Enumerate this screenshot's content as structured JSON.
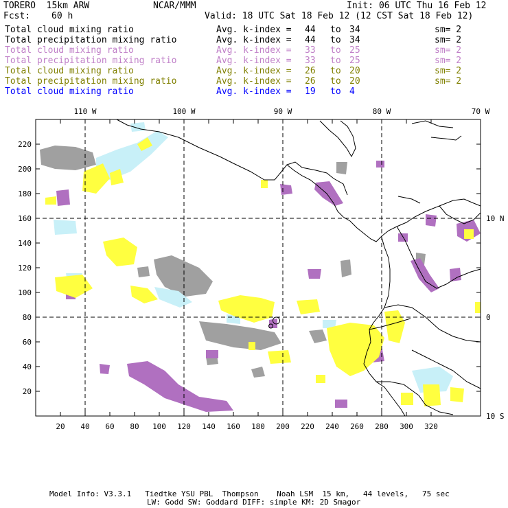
{
  "header": {
    "model": "TORERO  15km ARW",
    "org": "NCAR/MMM",
    "init": "Init: 06 UTC Thu 16 Feb 12",
    "fcst_label": "Fcst:",
    "fcst_value": "60 h",
    "valid": "Valid: 18 UTC Sat 18 Feb 12 (12 CST Sat 18 Feb 12)"
  },
  "legend": [
    {
      "field": "Total cloud mixing ratio",
      "kindex": "Avg. k-index =",
      "from": "44",
      "to_word": "to",
      "to": "34",
      "sm": "sm= 2",
      "color": "#000000"
    },
    {
      "field": "Total precipitation mixing ratio",
      "kindex": "Avg. k-index =",
      "from": "44",
      "to_word": "to",
      "to": "34",
      "sm": "sm= 2",
      "color": "#000000"
    },
    {
      "field": "Total cloud mixing ratio",
      "kindex": "Avg. k-index =",
      "from": "33",
      "to_word": "to",
      "to": "25",
      "sm": "sm= 2",
      "color": "#c080c8"
    },
    {
      "field": "Total precipitation mixing ratio",
      "kindex": "Avg. k-index =",
      "from": "33",
      "to_word": "to",
      "to": "25",
      "sm": "sm= 2",
      "color": "#c080c8"
    },
    {
      "field": "Total cloud mixing ratio",
      "kindex": "Avg. k-index =",
      "from": "26",
      "to_word": "to",
      "to": "20",
      "sm": "sm= 2",
      "color": "#808000"
    },
    {
      "field": "Total precipitation mixing ratio",
      "kindex": "Avg. k-index =",
      "from": "26",
      "to_word": "to",
      "to": "20",
      "sm": "sm= 2",
      "color": "#808000"
    },
    {
      "field": "Total cloud mixing ratio",
      "kindex": "Avg. k-index =",
      "from": "19",
      "to_word": "to",
      "to": "4",
      "sm": "",
      "color": "#0000ff"
    }
  ],
  "map": {
    "lon_labels": [
      "110 W",
      "100 W",
      "90 W",
      "80 W",
      "70 W"
    ],
    "lat_labels": [
      "10 N",
      "0",
      "10 S"
    ],
    "x_ticks": [
      "20",
      "40",
      "60",
      "80",
      "100",
      "120",
      "140",
      "160",
      "180",
      "200",
      "220",
      "240",
      "260",
      "280",
      "300",
      "320"
    ],
    "y_ticks": [
      "20",
      "40",
      "60",
      "80",
      "100",
      "120",
      "140",
      "160",
      "180",
      "200",
      "220"
    ],
    "colors": {
      "gray": "#a0a0a0",
      "purple": "#b070c0",
      "yellow": "#ffff40",
      "cyan": "#c8f0f8"
    }
  },
  "footer": {
    "line1": "Model Info: V3.3.1   Tiedtke YSU PBL  Thompson    Noah LSM  15 km,   44 levels,   75 sec",
    "line2": "LW: Godd SW: Goddard DIFF: simple KM: 2D Smagor"
  }
}
